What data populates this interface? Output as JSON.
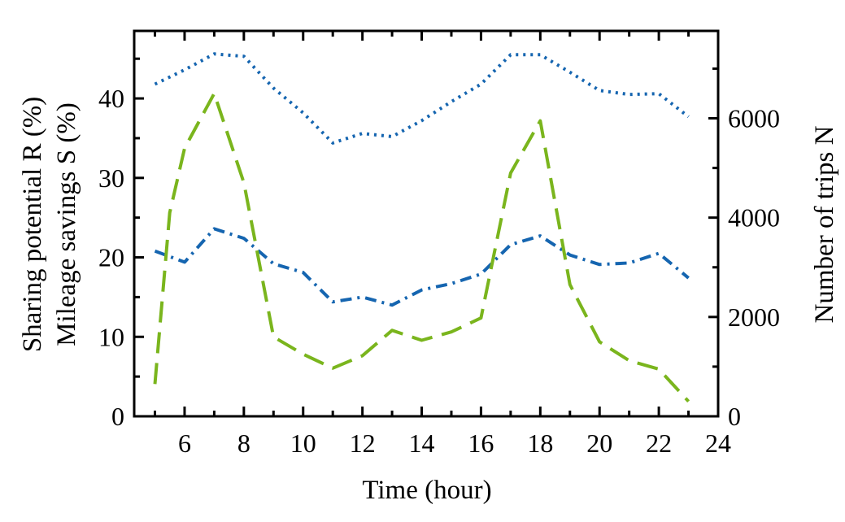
{
  "chart_data": {
    "type": "line",
    "xlabel": "Time (hour)",
    "ylabel_left": [
      "Sharing potential R (%)",
      "Mileage savings S (%)"
    ],
    "ylabel_right": "Number of trips N",
    "xlim": [
      4.3,
      24
    ],
    "ylim_left": [
      0,
      48.5
    ],
    "ylim_right": [
      0,
      7760
    ],
    "x_ticks": [
      6,
      8,
      10,
      12,
      14,
      16,
      18,
      20,
      22,
      24
    ],
    "y_left_ticks": [
      0,
      10,
      20,
      30,
      40
    ],
    "y_right_ticks": [
      0,
      2000,
      4000,
      6000
    ],
    "grid": false,
    "series": [
      {
        "axis": "left",
        "color": "#1565b0",
        "dash": "dotted",
        "x": [
          5,
          6,
          7,
          8,
          9,
          10,
          11,
          12,
          13,
          14,
          15,
          16,
          17,
          18,
          19,
          20,
          21,
          22,
          23
        ],
        "y": [
          41.8,
          43.6,
          45.6,
          45.3,
          41.3,
          38.2,
          34.4,
          35.6,
          35.2,
          37.2,
          39.6,
          41.8,
          45.5,
          45.5,
          43.3,
          41.0,
          40.5,
          40.6,
          37.7
        ]
      },
      {
        "axis": "left",
        "color": "#1565b0",
        "dash": "dashdot",
        "x": [
          5,
          6,
          7,
          8,
          9,
          10,
          11,
          12,
          13,
          14,
          15,
          16,
          17,
          18,
          19,
          20,
          21,
          22,
          23
        ],
        "y": [
          20.8,
          19.4,
          23.6,
          22.4,
          19.2,
          18.1,
          14.4,
          15.0,
          14.0,
          15.9,
          16.7,
          17.9,
          21.6,
          22.7,
          20.3,
          19.1,
          19.3,
          20.5,
          17.4
        ]
      },
      {
        "axis": "right",
        "color": "#7ab51d",
        "dash": "dashed",
        "x": [
          5,
          5.5,
          6,
          7,
          8,
          9,
          10,
          11,
          12,
          13,
          14,
          15,
          16,
          17,
          18,
          19,
          20,
          21,
          22,
          23
        ],
        "y": [
          650,
          4100,
          5400,
          6500,
          4700,
          1600,
          1250,
          970,
          1220,
          1730,
          1530,
          1700,
          1980,
          4900,
          5950,
          2650,
          1500,
          1120,
          950,
          300
        ]
      }
    ]
  }
}
